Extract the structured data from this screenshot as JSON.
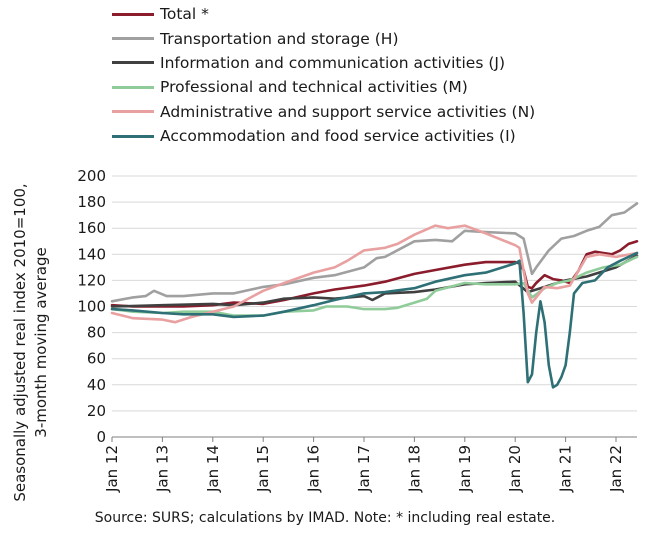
{
  "chart_data": {
    "type": "line",
    "ylabel_lines": [
      "Seasonally adjusted real index 2010=100,",
      "3-month moving average"
    ],
    "xlabel": "",
    "ylim": [
      0,
      200
    ],
    "yticks": [
      0,
      20,
      40,
      60,
      80,
      100,
      120,
      140,
      160,
      180,
      200
    ],
    "x_start": "2012-01",
    "x_end": "2022-06",
    "xtick_labels": [
      "Jan 12",
      "Jan 13",
      "Jan 14",
      "Jan 15",
      "Jan 16",
      "Jan 17",
      "Jan 18",
      "Jan 19",
      "Jan 20",
      "Jan 21",
      "Jan 22"
    ],
    "grid": "horizontal",
    "legend_position": "top",
    "source": "Source:  SURS; calculations by IMAD. Note: * including real estate.",
    "series": [
      {
        "name": "Total *",
        "color": "#8b1c2c",
        "points": [
          [
            "2012-01",
            101
          ],
          [
            "2012-06",
            100
          ],
          [
            "2013-01",
            100
          ],
          [
            "2013-06",
            100
          ],
          [
            "2014-01",
            101
          ],
          [
            "2014-06",
            103
          ],
          [
            "2015-01",
            102
          ],
          [
            "2015-06",
            105
          ],
          [
            "2016-01",
            110
          ],
          [
            "2016-06",
            113
          ],
          [
            "2017-01",
            116
          ],
          [
            "2017-06",
            119
          ],
          [
            "2018-01",
            125
          ],
          [
            "2018-06",
            128
          ],
          [
            "2019-01",
            132
          ],
          [
            "2019-06",
            134
          ],
          [
            "2020-01",
            134
          ],
          [
            "2020-02",
            133
          ],
          [
            "2020-03",
            128
          ],
          [
            "2020-04",
            115
          ],
          [
            "2020-05",
            114
          ],
          [
            "2020-06",
            118
          ],
          [
            "2020-08",
            124
          ],
          [
            "2020-10",
            121
          ],
          [
            "2020-12",
            120
          ],
          [
            "2021-02",
            118
          ],
          [
            "2021-04",
            127
          ],
          [
            "2021-06",
            140
          ],
          [
            "2021-08",
            142
          ],
          [
            "2021-10",
            141
          ],
          [
            "2021-12",
            140
          ],
          [
            "2022-02",
            143
          ],
          [
            "2022-04",
            148
          ],
          [
            "2022-06",
            150
          ]
        ]
      },
      {
        "name": "Transportation and storage (H)",
        "color": "#a0a0a0",
        "points": [
          [
            "2012-01",
            104
          ],
          [
            "2012-06",
            107
          ],
          [
            "2012-09",
            108
          ],
          [
            "2012-11",
            112
          ],
          [
            "2013-02",
            108
          ],
          [
            "2013-06",
            108
          ],
          [
            "2014-01",
            110
          ],
          [
            "2014-06",
            110
          ],
          [
            "2015-01",
            115
          ],
          [
            "2015-06",
            117
          ],
          [
            "2016-01",
            122
          ],
          [
            "2016-06",
            124
          ],
          [
            "2017-01",
            130
          ],
          [
            "2017-04",
            137
          ],
          [
            "2017-06",
            138
          ],
          [
            "2018-01",
            150
          ],
          [
            "2018-06",
            151
          ],
          [
            "2018-10",
            150
          ],
          [
            "2019-01",
            158
          ],
          [
            "2019-06",
            157
          ],
          [
            "2020-01",
            156
          ],
          [
            "2020-03",
            152
          ],
          [
            "2020-05",
            125
          ],
          [
            "2020-06",
            130
          ],
          [
            "2020-09",
            143
          ],
          [
            "2020-12",
            152
          ],
          [
            "2021-03",
            154
          ],
          [
            "2021-06",
            158
          ],
          [
            "2021-09",
            161
          ],
          [
            "2021-12",
            170
          ],
          [
            "2022-03",
            172
          ],
          [
            "2022-06",
            179
          ]
        ]
      },
      {
        "name": "Information and communication activities (J)",
        "color": "#404040",
        "points": [
          [
            "2012-01",
            100
          ],
          [
            "2013-01",
            101
          ],
          [
            "2014-01",
            102
          ],
          [
            "2014-06",
            101
          ],
          [
            "2015-01",
            103
          ],
          [
            "2015-06",
            106
          ],
          [
            "2016-01",
            107
          ],
          [
            "2016-06",
            106
          ],
          [
            "2017-01",
            108
          ],
          [
            "2017-03",
            105
          ],
          [
            "2017-06",
            110
          ],
          [
            "2018-01",
            111
          ],
          [
            "2018-06",
            113
          ],
          [
            "2019-01",
            117
          ],
          [
            "2019-06",
            118
          ],
          [
            "2020-01",
            119
          ],
          [
            "2020-04",
            111
          ],
          [
            "2020-07",
            114
          ],
          [
            "2020-10",
            117
          ],
          [
            "2021-01",
            120
          ],
          [
            "2021-06",
            123
          ],
          [
            "2022-01",
            130
          ],
          [
            "2022-06",
            139
          ]
        ]
      },
      {
        "name": "Professional and technical activities (M)",
        "color": "#90cc99",
        "points": [
          [
            "2012-01",
            98
          ],
          [
            "2012-06",
            96
          ],
          [
            "2013-01",
            95
          ],
          [
            "2013-06",
            96
          ],
          [
            "2014-01",
            96
          ],
          [
            "2014-06",
            93
          ],
          [
            "2015-01",
            93
          ],
          [
            "2015-06",
            96
          ],
          [
            "2016-01",
            97
          ],
          [
            "2016-04",
            100
          ],
          [
            "2016-09",
            100
          ],
          [
            "2017-01",
            98
          ],
          [
            "2017-06",
            98
          ],
          [
            "2017-09",
            99
          ],
          [
            "2018-01",
            103
          ],
          [
            "2018-04",
            106
          ],
          [
            "2018-06",
            112
          ],
          [
            "2019-01",
            118
          ],
          [
            "2019-06",
            117
          ],
          [
            "2020-01",
            117
          ],
          [
            "2020-03",
            118
          ],
          [
            "2020-05",
            107
          ],
          [
            "2020-08",
            114
          ],
          [
            "2020-11",
            118
          ],
          [
            "2021-02",
            120
          ],
          [
            "2021-06",
            126
          ],
          [
            "2021-10",
            130
          ],
          [
            "2022-02",
            132
          ],
          [
            "2022-06",
            138
          ]
        ]
      },
      {
        "name": "Administrative and support service activities (N)",
        "color": "#e8a0a0",
        "points": [
          [
            "2012-01",
            95
          ],
          [
            "2012-06",
            91
          ],
          [
            "2013-01",
            90
          ],
          [
            "2013-04",
            88
          ],
          [
            "2013-08",
            92
          ],
          [
            "2014-01",
            96
          ],
          [
            "2014-06",
            100
          ],
          [
            "2015-01",
            112
          ],
          [
            "2015-06",
            118
          ],
          [
            "2016-01",
            126
          ],
          [
            "2016-06",
            130
          ],
          [
            "2016-09",
            135
          ],
          [
            "2017-01",
            143
          ],
          [
            "2017-06",
            145
          ],
          [
            "2017-09",
            148
          ],
          [
            "2018-01",
            155
          ],
          [
            "2018-06",
            162
          ],
          [
            "2018-09",
            160
          ],
          [
            "2019-01",
            162
          ],
          [
            "2019-06",
            156
          ],
          [
            "2020-01",
            147
          ],
          [
            "2020-02",
            145
          ],
          [
            "2020-04",
            110
          ],
          [
            "2020-05",
            103
          ],
          [
            "2020-08",
            115
          ],
          [
            "2020-11",
            114
          ],
          [
            "2021-02",
            116
          ],
          [
            "2021-06",
            138
          ],
          [
            "2021-09",
            140
          ],
          [
            "2022-01",
            138
          ],
          [
            "2022-06",
            141
          ]
        ]
      },
      {
        "name": "Accommodation and food service activities (I)",
        "color": "#2e7075",
        "points": [
          [
            "2012-01",
            98
          ],
          [
            "2012-06",
            97
          ],
          [
            "2013-01",
            95
          ],
          [
            "2013-06",
            94
          ],
          [
            "2014-01",
            94
          ],
          [
            "2014-06",
            92
          ],
          [
            "2015-01",
            93
          ],
          [
            "2015-06",
            96
          ],
          [
            "2016-01",
            101
          ],
          [
            "2016-06",
            105
          ],
          [
            "2017-01",
            110
          ],
          [
            "2017-06",
            111
          ],
          [
            "2018-01",
            114
          ],
          [
            "2018-06",
            119
          ],
          [
            "2019-01",
            124
          ],
          [
            "2019-06",
            126
          ],
          [
            "2020-01",
            133
          ],
          [
            "2020-02",
            135
          ],
          [
            "2020-03",
            95
          ],
          [
            "2020-04",
            42
          ],
          [
            "2020-05",
            48
          ],
          [
            "2020-06",
            80
          ],
          [
            "2020-07",
            104
          ],
          [
            "2020-08",
            88
          ],
          [
            "2020-09",
            55
          ],
          [
            "2020-10",
            38
          ],
          [
            "2020-11",
            40
          ],
          [
            "2020-12",
            46
          ],
          [
            "2021-01",
            55
          ],
          [
            "2021-02",
            80
          ],
          [
            "2021-03",
            110
          ],
          [
            "2021-05",
            118
          ],
          [
            "2021-08",
            120
          ],
          [
            "2021-11",
            130
          ],
          [
            "2022-02",
            135
          ],
          [
            "2022-06",
            141
          ]
        ]
      }
    ]
  }
}
